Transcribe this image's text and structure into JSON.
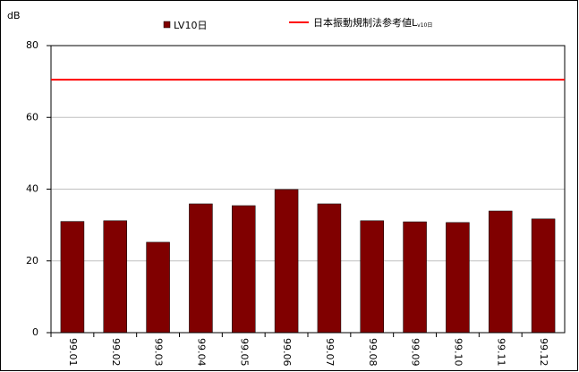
{
  "chart_data": {
    "type": "bar",
    "y_label": "dB",
    "categories": [
      "99.01",
      "99.02",
      "99.03",
      "99.04",
      "99.05",
      "99.06",
      "99.07",
      "99.08",
      "99.09",
      "99.10",
      "99.11",
      "99.12"
    ],
    "series": [
      {
        "name": "LV10日",
        "color": "#800000",
        "values": [
          31,
          31.2,
          25.2,
          35.9,
          35.4,
          39.9,
          35.9,
          31.2,
          30.9,
          30.7,
          33.9,
          31.7
        ]
      }
    ],
    "reference_line": {
      "name": "日本振動規制法参考値L",
      "subscript": "v10日",
      "value": 70.5,
      "color": "#ff0000"
    },
    "ylim": [
      0,
      80
    ],
    "yticks": [
      0,
      20,
      40,
      60,
      80
    ],
    "grid": true
  }
}
